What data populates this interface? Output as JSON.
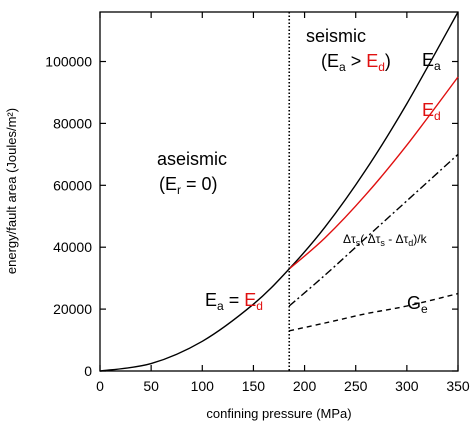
{
  "chart_data": {
    "type": "line",
    "xlabel": "confining pressure (MPa)",
    "ylabel": "energy/fault area (Joules/m²)",
    "xlim": [
      0,
      350
    ],
    "ylim": [
      0,
      116000
    ],
    "x_ticks": [
      "0",
      "50",
      "100",
      "150",
      "200",
      "250",
      "300",
      "350"
    ],
    "y_ticks": [
      "0",
      "20000",
      "40000",
      "60000",
      "80000",
      "100000"
    ],
    "threshold_x": 185,
    "series": [
      {
        "name": "Ea",
        "style": "solid",
        "color": "#000000",
        "x": [
          0,
          50,
          100,
          150,
          185,
          220,
          260,
          300,
          350
        ],
        "y": [
          0,
          2400,
          9600,
          21600,
          33000,
          46500,
          65000,
          86400,
          116000
        ]
      },
      {
        "name": "Ed",
        "style": "solid",
        "color": "#e01010",
        "x": [
          185,
          220,
          260,
          300,
          350
        ],
        "y": [
          33000,
          43000,
          57000,
          73000,
          95000
        ]
      },
      {
        "name": "Δτs(Δτs−Δτd)/k",
        "style": "dashdot",
        "color": "#000000",
        "x": [
          185,
          220,
          260,
          300,
          350
        ],
        "y": [
          21000,
          31000,
          43000,
          55000,
          70000
        ]
      },
      {
        "name": "Ge",
        "style": "dashed",
        "color": "#000000",
        "x": [
          185,
          220,
          260,
          300,
          350
        ],
        "y": [
          13000,
          15500,
          18500,
          21000,
          25000
        ]
      }
    ]
  },
  "annotations": {
    "seismic": "seismic",
    "seismic_cond_open": "(E",
    "seismic_cond_sub_a": "a",
    "seismic_cond_gt": " > ",
    "seismic_cond_Ed": "E",
    "seismic_cond_sub_d": "d",
    "seismic_cond_close": ")",
    "aseismic": "aseismic",
    "aseismic_cond_open": "(E",
    "aseismic_cond_sub_r": "r",
    "aseismic_cond_rest": " = 0)",
    "Ea_label": "E",
    "Ea_sub": "a",
    "Ed_label": "E",
    "Ed_sub": "d",
    "eq_Ea": "E",
    "eq_sub_a": "a",
    "eq_eq": " = ",
    "eq_Ed": "E",
    "eq_sub_d": "d",
    "tau_1": "Δτ",
    "tau_1_sub": "s",
    "tau_2": "( Δτ",
    "tau_2_sub": "s",
    "tau_3": " - Δτ",
    "tau_3_sub": "d",
    "tau_4": ")/k",
    "Ge_label": "G",
    "Ge_sub": "e"
  }
}
